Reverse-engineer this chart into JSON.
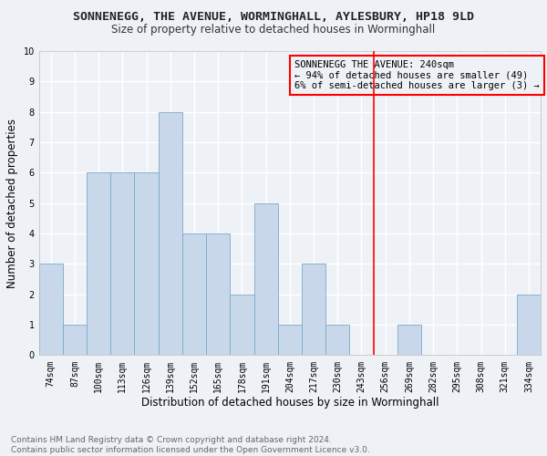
{
  "title": "SONNENEGG, THE AVENUE, WORMINGHALL, AYLESBURY, HP18 9LD",
  "subtitle": "Size of property relative to detached houses in Worminghall",
  "xlabel": "Distribution of detached houses by size in Worminghall",
  "ylabel": "Number of detached properties",
  "categories": [
    "74sqm",
    "87sqm",
    "100sqm",
    "113sqm",
    "126sqm",
    "139sqm",
    "152sqm",
    "165sqm",
    "178sqm",
    "191sqm",
    "204sqm",
    "217sqm",
    "230sqm",
    "243sqm",
    "256sqm",
    "269sqm",
    "282sqm",
    "295sqm",
    "308sqm",
    "321sqm",
    "334sqm"
  ],
  "values": [
    3,
    1,
    6,
    6,
    6,
    8,
    4,
    4,
    2,
    5,
    1,
    3,
    1,
    0,
    0,
    1,
    0,
    0,
    0,
    0,
    2
  ],
  "bar_color": "#c8d8ea",
  "bar_edge_color": "#7aaac8",
  "vline_color": "red",
  "vline_idx": 13.5,
  "ylim": [
    0,
    10
  ],
  "yticks": [
    0,
    1,
    2,
    3,
    4,
    5,
    6,
    7,
    8,
    9,
    10
  ],
  "annotation_title": "SONNENEGG THE AVENUE: 240sqm",
  "annotation_line1": "← 94% of detached houses are smaller (49)",
  "annotation_line2": "6% of semi-detached houses are larger (3) →",
  "footer_line1": "Contains HM Land Registry data © Crown copyright and database right 2024.",
  "footer_line2": "Contains public sector information licensed under the Open Government Licence v3.0.",
  "bg_color": "#eef2f7",
  "grid_color": "#ffffff",
  "title_fontsize": 9.5,
  "subtitle_fontsize": 8.5,
  "tick_fontsize": 7,
  "ylabel_fontsize": 8.5,
  "xlabel_fontsize": 8.5,
  "footer_fontsize": 6.5,
  "annotation_fontsize": 7.5
}
